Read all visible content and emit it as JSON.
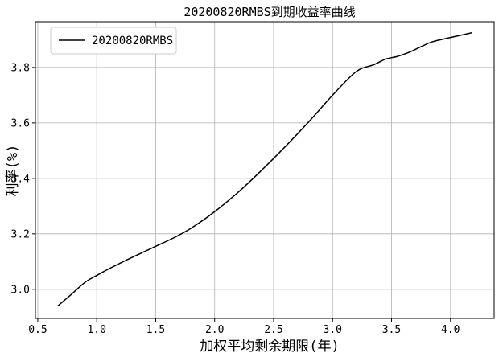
{
  "chart_data": {
    "type": "line",
    "title": "20200820RMBS到期收益率曲线",
    "xlabel": "加权平均剩余期限(年)",
    "ylabel": "利率(%)",
    "xlim": [
      0.48,
      4.37
    ],
    "ylim": [
      2.895,
      3.965
    ],
    "xticks": [
      0.5,
      1.0,
      1.5,
      2.0,
      2.5,
      3.0,
      3.5,
      4.0
    ],
    "xtick_labels": [
      "0.5",
      "1.0",
      "1.5",
      "2.0",
      "2.5",
      "3.0",
      "3.5",
      "4.0"
    ],
    "yticks": [
      3.0,
      3.2,
      3.4,
      3.6,
      3.8
    ],
    "ytick_labels": [
      "3.0",
      "3.2",
      "3.4",
      "3.6",
      "3.8"
    ],
    "grid": true,
    "legend_position": "top-left",
    "series": [
      {
        "name": "20200820RMBS",
        "color": "#000000",
        "x": [
          0.67,
          0.78,
          0.9,
          1.0,
          1.1,
          1.25,
          1.4,
          1.5,
          1.65,
          1.8,
          2.0,
          2.2,
          2.4,
          2.6,
          2.8,
          3.0,
          3.2,
          3.35,
          3.45,
          3.55,
          3.65,
          3.75,
          3.85,
          4.0,
          4.18
        ],
        "y": [
          2.94,
          2.98,
          3.025,
          3.05,
          3.073,
          3.105,
          3.135,
          3.155,
          3.185,
          3.22,
          3.28,
          3.35,
          3.43,
          3.515,
          3.605,
          3.7,
          3.785,
          3.81,
          3.83,
          3.84,
          3.855,
          3.875,
          3.893,
          3.908,
          3.925
        ]
      }
    ]
  }
}
